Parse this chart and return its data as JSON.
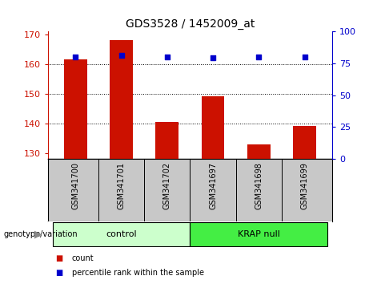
{
  "title": "GDS3528 / 1452009_at",
  "categories": [
    "GSM341700",
    "GSM341701",
    "GSM341702",
    "GSM341697",
    "GSM341698",
    "GSM341699"
  ],
  "count_values": [
    161.5,
    168.0,
    140.5,
    149.0,
    133.0,
    139.0
  ],
  "percentile_values": [
    80,
    81,
    80,
    79,
    80,
    80
  ],
  "ylim_left": [
    128,
    171
  ],
  "ylim_right": [
    0,
    100
  ],
  "yticks_left": [
    130,
    140,
    150,
    160,
    170
  ],
  "yticks_right": [
    0,
    25,
    50,
    75,
    100
  ],
  "bar_color": "#cc1100",
  "dot_color": "#0000cc",
  "bar_bottom": 128,
  "group_labels": [
    "control",
    "KRAP null"
  ],
  "group_colors": [
    "#bbffbb",
    "#44dd44"
  ],
  "legend_items": [
    "count",
    "percentile rank within the sample"
  ],
  "legend_colors": [
    "#cc1100",
    "#0000cc"
  ],
  "grid_lines": [
    160,
    150,
    140
  ],
  "background_color": "#ffffff",
  "xticklabel_area_color": "#c8c8c8",
  "ctrl_color": "#ccffcc",
  "krap_color": "#44ee44"
}
